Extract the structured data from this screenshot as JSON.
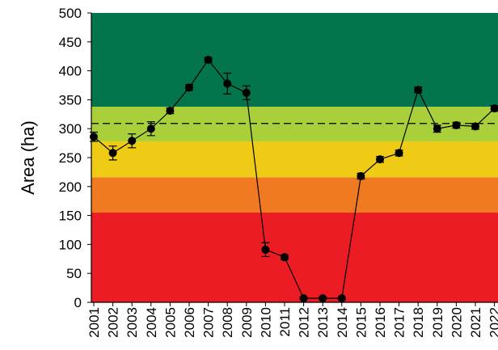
{
  "chart_data": {
    "type": "line",
    "y_label": "Area (ha)",
    "categories": [
      "2001",
      "2002",
      "2003",
      "2004",
      "2005",
      "2006",
      "2007",
      "2008",
      "2009",
      "2010",
      "2011",
      "2012",
      "2013",
      "2014",
      "2015",
      "2016",
      "2017",
      "2018",
      "2019",
      "2020",
      "2021",
      "2022"
    ],
    "values": [
      286,
      258,
      279,
      300,
      331,
      371,
      419,
      378,
      362,
      91,
      78,
      7,
      7,
      7,
      218,
      247,
      258,
      367,
      300,
      306,
      304,
      335
    ],
    "errors": [
      8,
      12,
      12,
      12,
      5,
      5,
      4,
      18,
      12,
      12,
      4,
      2,
      2,
      2,
      5,
      5,
      5,
      5,
      6,
      5,
      5,
      5
    ],
    "color": "#000000",
    "bands": [
      {
        "from": 0,
        "to": 155,
        "color": "#ec1c24"
      },
      {
        "from": 155,
        "to": 216,
        "color": "#f07a22"
      },
      {
        "from": 216,
        "to": 278,
        "color": "#f0cb16"
      },
      {
        "from": 278,
        "to": 338,
        "color": "#a9d03a"
      },
      {
        "from": 338,
        "to": 500,
        "color": "#03744b"
      }
    ],
    "reference_line": 309,
    "ylim": [
      0,
      500
    ],
    "yticks": [
      0,
      50,
      100,
      150,
      200,
      250,
      300,
      350,
      400,
      450,
      500
    ]
  }
}
